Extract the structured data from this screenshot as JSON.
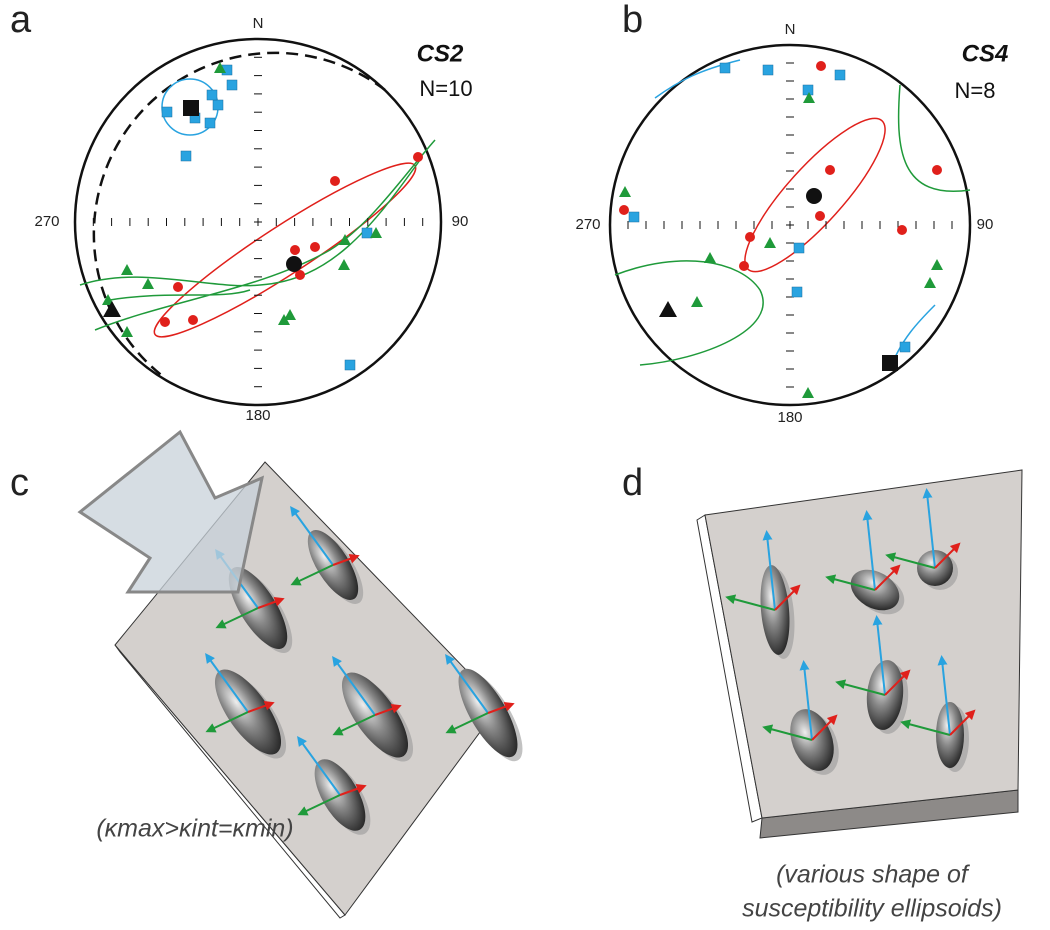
{
  "panels": [
    {
      "label": "a",
      "north": "N",
      "east": "90",
      "south": "180",
      "west": "270",
      "site": "CS2",
      "count": "N=10"
    },
    {
      "label": "b",
      "north": "N",
      "east": "90",
      "south": "180",
      "west": "270",
      "site": "CS4",
      "count": "N=8"
    },
    {
      "label": "c",
      "caption": "(κmax>κint=κmin)"
    },
    {
      "label": "d",
      "caption": [
        "(various shape of",
        "susceptibility ellipsoids)"
      ]
    }
  ]
}
